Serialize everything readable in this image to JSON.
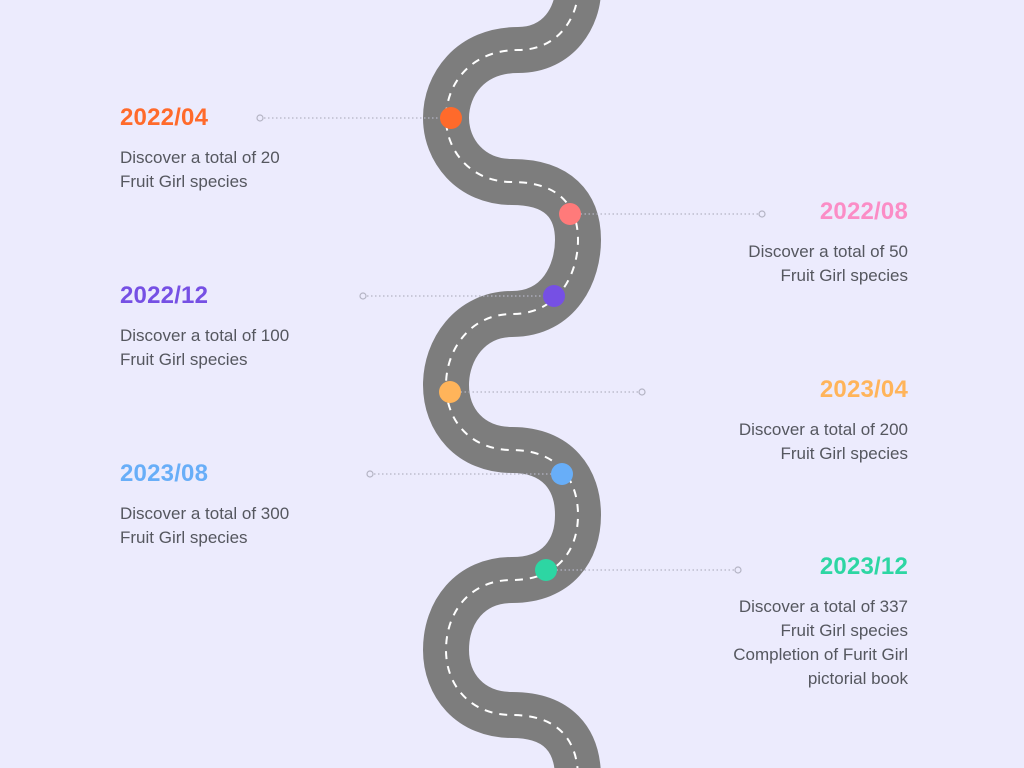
{
  "milestones": [
    {
      "date": "2022/04",
      "color": "#ff6a2b",
      "side": "left",
      "lines": [
        "Discover a total of 20",
        "Fruit Girl species"
      ]
    },
    {
      "date": "2022/08",
      "color": "#fb8dc6",
      "side": "right",
      "lines": [
        "Discover a total of 50",
        "Fruit Girl species"
      ]
    },
    {
      "date": "2022/12",
      "color": "#7650e4",
      "side": "left",
      "lines": [
        "Discover a total of 100",
        "Fruit Girl species"
      ]
    },
    {
      "date": "2023/04",
      "color": "#ffb45a",
      "side": "right",
      "lines": [
        "Discover a total of 200",
        "Fruit Girl species"
      ]
    },
    {
      "date": "2023/08",
      "color": "#68aef8",
      "side": "left",
      "lines": [
        "Discover a total of 300",
        "Fruit Girl species"
      ]
    },
    {
      "date": "2023/12",
      "color": "#2dd6a3",
      "side": "right",
      "lines": [
        "Discover a total of 337",
        "Fruit Girl species",
        "Completion of Furit Girl",
        "pictorial book"
      ]
    }
  ],
  "road_color": "#7d7d7d",
  "dot_colors": [
    "#ff6a2b",
    "#ff7a7a",
    "#7650e4",
    "#ffb45a",
    "#68aef8",
    "#2dd6a3"
  ]
}
